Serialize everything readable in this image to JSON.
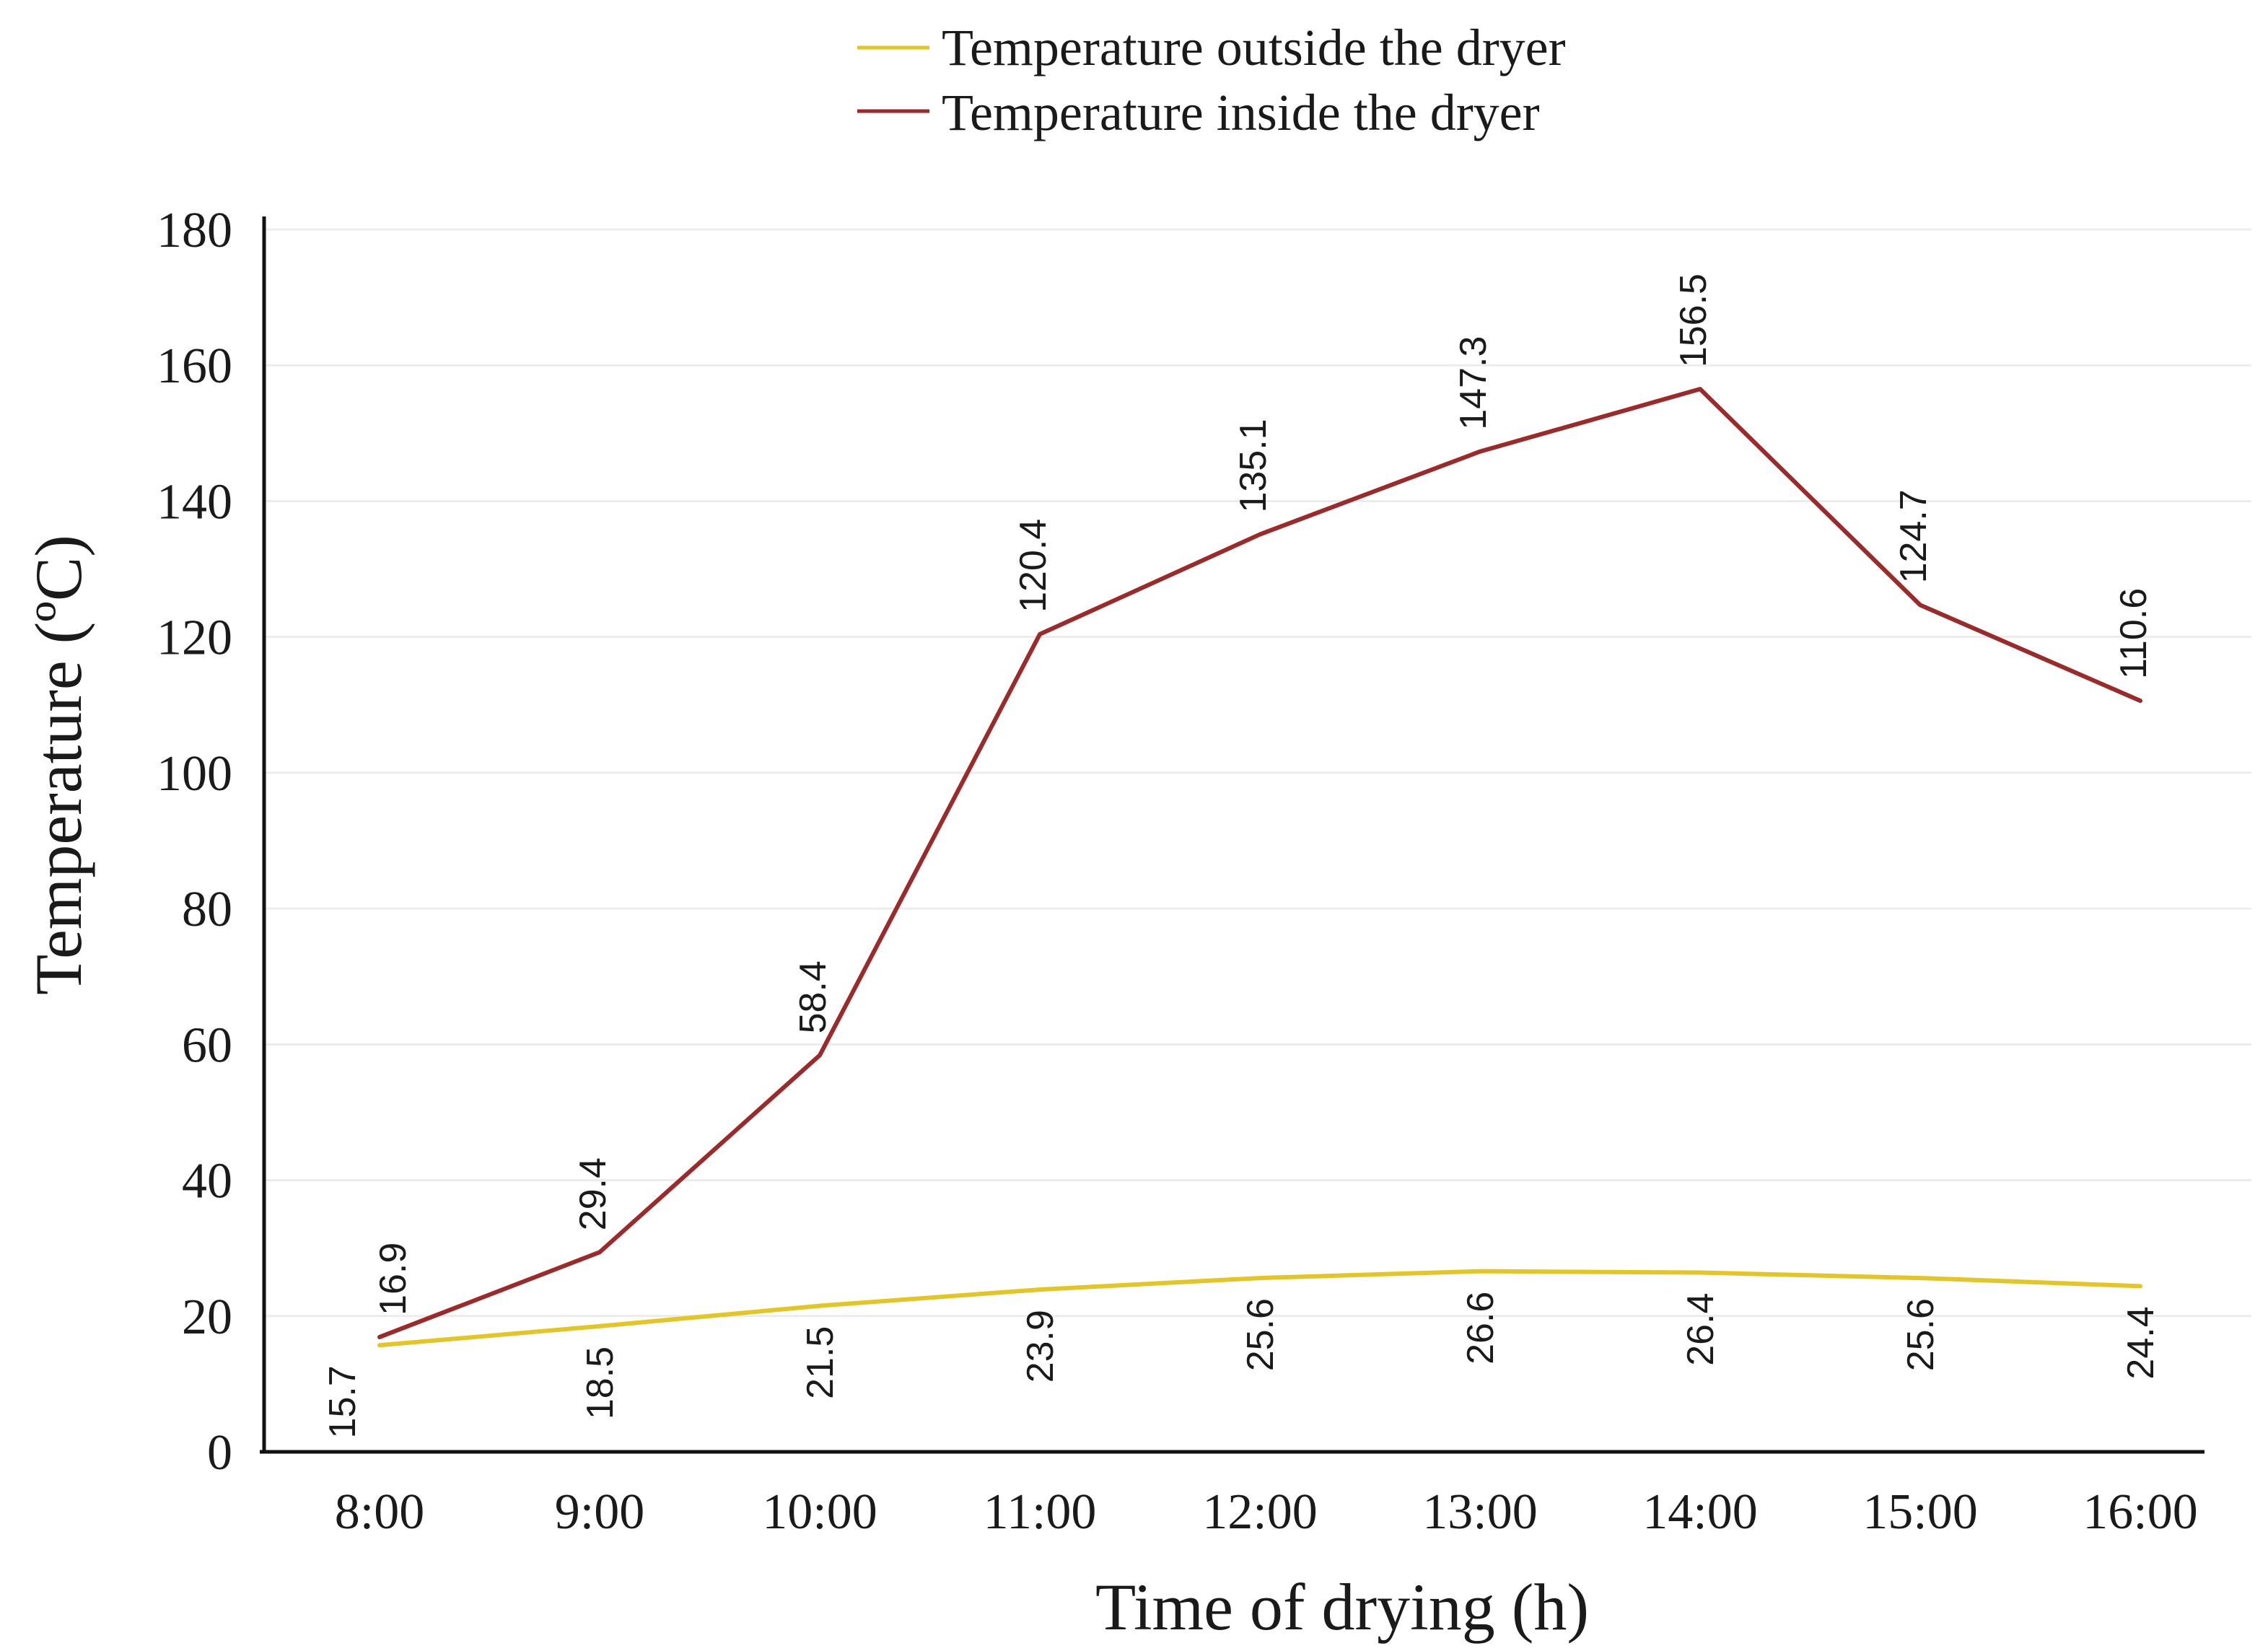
{
  "chart_data": {
    "type": "line",
    "title": "",
    "xlabel": "Time of drying (h)",
    "ylabel": "Temperature (ºC)",
    "categories": [
      "8:00",
      "9:00",
      "10:00",
      "11:00",
      "12:00",
      "13:00",
      "14:00",
      "15:00",
      "16:00"
    ],
    "ylim": [
      0,
      180
    ],
    "yticks": [
      0,
      20,
      40,
      60,
      80,
      100,
      120,
      140,
      160,
      180
    ],
    "grid": "horizontal",
    "legend_position": "top-center",
    "series": [
      {
        "name": "Temperature outside the dryer",
        "color": "#e3c526",
        "values": [
          15.7,
          18.5,
          21.5,
          23.9,
          25.6,
          26.6,
          26.4,
          25.6,
          24.4
        ],
        "labels": [
          "15.7",
          "18.5",
          "21.5",
          "23.9",
          "25.6",
          "26.6",
          "26.4",
          "25.6",
          "24.4"
        ]
      },
      {
        "name": "Temperature inside the dryer",
        "color": "#9b2a2a",
        "values": [
          16.9,
          29.4,
          58.4,
          120.4,
          135.1,
          147.3,
          156.5,
          124.7,
          110.6
        ],
        "labels": [
          "16.9",
          "29.4",
          "58.4",
          "120.4",
          "135.1",
          "147.3",
          "156.5",
          "124.7",
          "110.6"
        ]
      }
    ]
  }
}
